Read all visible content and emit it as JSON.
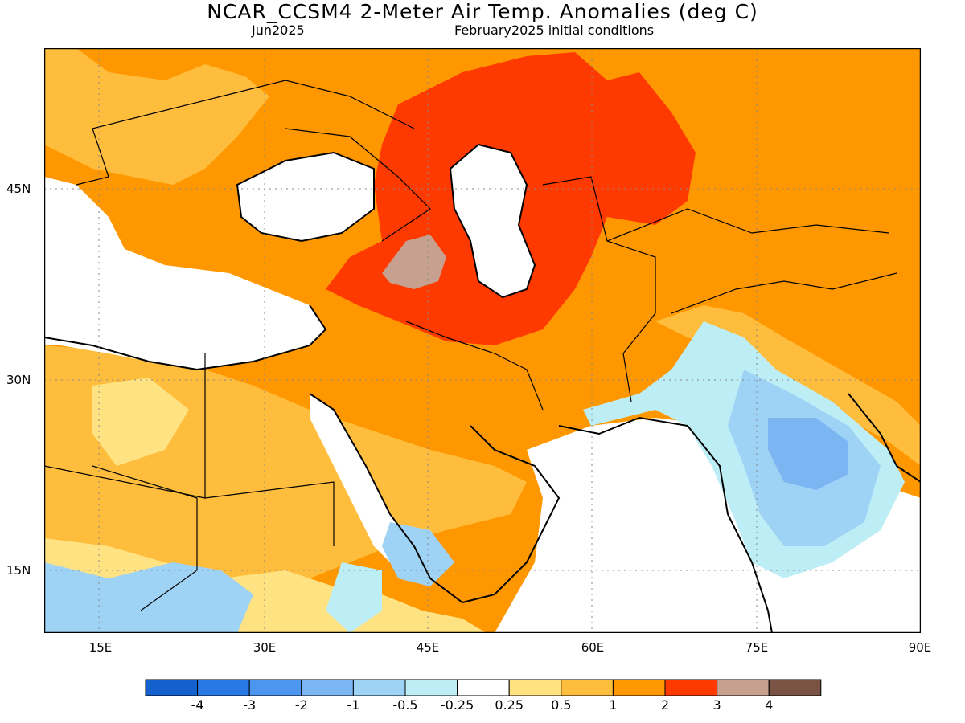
{
  "title": "NCAR_CCSM4 2-Meter Air Temp. Anomalies (deg C)",
  "subtitle_left": "Jun2025",
  "subtitle_right": "February2025 initial conditions",
  "lat_labels": [
    "45N",
    "30N",
    "15N"
  ],
  "lon_labels": [
    "15E",
    "30E",
    "45E",
    "60E",
    "75E",
    "90E"
  ],
  "colorbar": {
    "colors": [
      "#1560cf",
      "#2a78e6",
      "#4c96f0",
      "#7bb6f3",
      "#9fd3f6",
      "#bdeef6",
      "#ffffff",
      "#ffe383",
      "#ffbd3e",
      "#ff9800",
      "#ff3a00",
      "#c8a08f",
      "#7a5344"
    ],
    "labels": [
      "-4",
      "-3",
      "-2",
      "-1",
      "-0.5",
      "-0.25",
      "0.25",
      "0.5",
      "1",
      "2",
      "3",
      "4"
    ]
  }
}
